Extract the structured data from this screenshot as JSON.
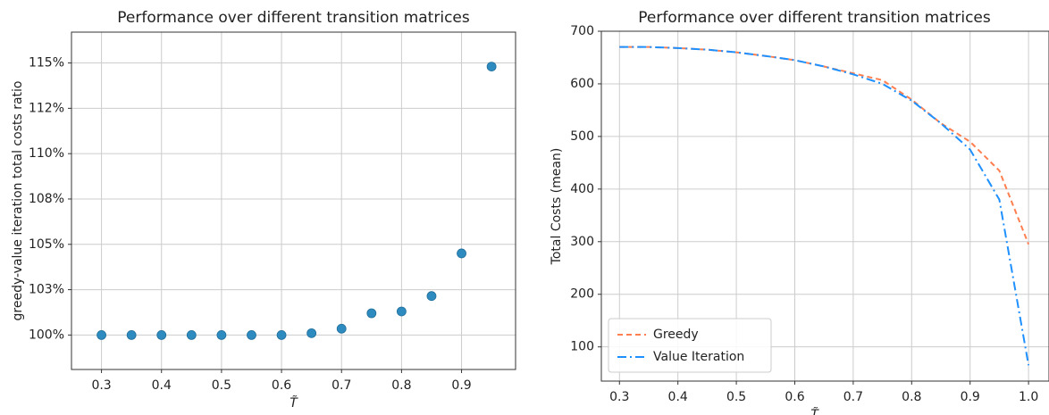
{
  "chart_data": [
    {
      "type": "scatter",
      "title": "Performance over different transition matrices",
      "xlabel": "T̃",
      "ylabel": "greedy-value iteration total costs ratio",
      "x": [
        0.3,
        0.35,
        0.4,
        0.45,
        0.5,
        0.55,
        0.6,
        0.65,
        0.7,
        0.75,
        0.8,
        0.85,
        0.9,
        0.95
      ],
      "values": [
        100,
        100,
        100,
        100,
        100,
        100,
        100,
        100.1,
        100.35,
        101.2,
        101.3,
        102.15,
        104.5,
        114.8
      ],
      "color": "#2e8bc0",
      "xlim": [
        0.25,
        0.99
      ],
      "xticks": [
        0.3,
        0.4,
        0.5,
        0.6,
        0.7,
        0.8,
        0.9
      ],
      "ylim": [
        98.1,
        116.7
      ],
      "yticks": [
        {
          "value": 100,
          "label": "100%"
        },
        {
          "value": 102.5,
          "label": "103%"
        },
        {
          "value": 105,
          "label": "105%"
        },
        {
          "value": 107.5,
          "label": "108%"
        },
        {
          "value": 110,
          "label": "110%"
        },
        {
          "value": 112.5,
          "label": "112%"
        },
        {
          "value": 115,
          "label": "115%"
        }
      ],
      "grid": true
    },
    {
      "type": "line",
      "title": "Performance over different transition matrices",
      "xlabel": "T̃",
      "ylabel": "Total Costs (mean)",
      "x": [
        0.3,
        0.35,
        0.4,
        0.45,
        0.5,
        0.55,
        0.6,
        0.65,
        0.7,
        0.75,
        0.8,
        0.85,
        0.9,
        0.95,
        1.0
      ],
      "series": [
        {
          "name": "Greedy",
          "color": "#ff7f50",
          "dash": "6,4",
          "values": [
            670,
            670,
            668,
            665,
            660,
            653,
            645,
            633,
            620,
            607,
            570,
            525,
            490,
            435,
            295
          ]
        },
        {
          "name": "Value Iteration",
          "color": "#1e90ff",
          "dash": "10,4,2,4",
          "values": [
            670,
            670,
            668,
            665,
            660,
            653,
            645,
            633,
            618,
            600,
            568,
            525,
            475,
            380,
            65
          ]
        }
      ],
      "xlim": [
        0.269,
        1.035
      ],
      "xticks": [
        0.3,
        0.4,
        0.5,
        0.6,
        0.7,
        0.8,
        0.9,
        {
          "value": 1,
          "label": "1.0"
        }
      ],
      "ylim": [
        35,
        700
      ],
      "yticks": [
        100,
        200,
        300,
        400,
        500,
        600,
        700
      ],
      "grid": true,
      "legend": "lower left"
    }
  ]
}
